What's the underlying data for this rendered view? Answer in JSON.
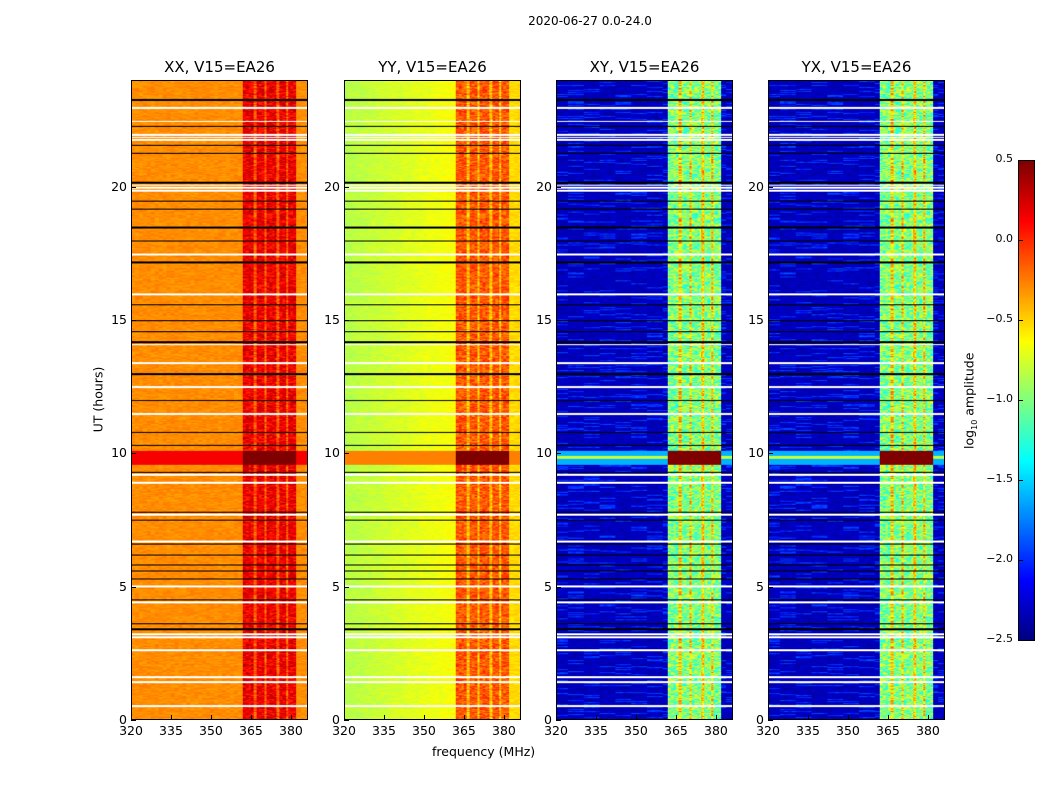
{
  "chart_data": {
    "type": "heatmap",
    "title": "2020-06-27 0.0-24.0",
    "xlabel": "frequency (MHz)",
    "ylabel": "UT (hours)",
    "xlim": [
      320,
      386.4
    ],
    "ylim": [
      0,
      24
    ],
    "xticks": [
      320,
      335,
      350,
      365,
      380
    ],
    "yticks": [
      0,
      5,
      10,
      15,
      20
    ],
    "panels": [
      {
        "title": "XX, V15=EA26",
        "base_level": -0.35,
        "band_level": 0.1,
        "band_stripes": false
      },
      {
        "title": "YY, V15=EA26",
        "base_level": -0.75,
        "band_level": -0.2,
        "band_stripes": false
      },
      {
        "title": "XY, V15=EA26",
        "base_level": -2.4,
        "band_level": -1.0,
        "band_stripes": true
      },
      {
        "title": "YX, V15=EA26",
        "base_level": -2.4,
        "band_level": -1.0,
        "band_stripes": true
      }
    ],
    "rfi_band_mhz": [
      362,
      382
    ],
    "band_gaps_mhz": [
      366.5,
      370.5,
      375.2,
      378.6
    ],
    "flare_hours": [
      9.6,
      10.1
    ],
    "flagged_hours": [
      0.5,
      1.4,
      1.6,
      2.6,
      3.1,
      3.2,
      4.4,
      5.0,
      6.7,
      7.7,
      8.9,
      9.2,
      11.5,
      12.5,
      13.4,
      14.1,
      16.0,
      17.5,
      19.9,
      20.0,
      20.1,
      21.8,
      21.9,
      22.0,
      22.5,
      23.0
    ],
    "scan_boundary_hours": [
      3.4,
      3.6,
      4.5,
      5.3,
      5.6,
      5.8,
      6.2,
      6.6,
      7.5,
      7.8,
      9.3,
      10.3,
      10.8,
      12.0,
      13.0,
      14.2,
      14.6,
      15.0,
      15.6,
      17.2,
      18.0,
      18.5,
      19.2,
      19.5,
      20.2,
      21.3,
      21.6,
      22.3,
      23.3
    ],
    "colorbar": {
      "label": "log10 amplitude",
      "label_base": "log",
      "label_sub": "10",
      "label_rest": " amplitude",
      "colormap": "jet",
      "range": [
        -2.5,
        0.5
      ],
      "ticks": [
        "0.5",
        "0.0",
        "−0.5",
        "−1.0",
        "−1.5",
        "−2.0",
        "−2.5"
      ],
      "tick_values": [
        0.5,
        0.0,
        -0.5,
        -1.0,
        -1.5,
        -2.0,
        -2.5
      ]
    }
  }
}
